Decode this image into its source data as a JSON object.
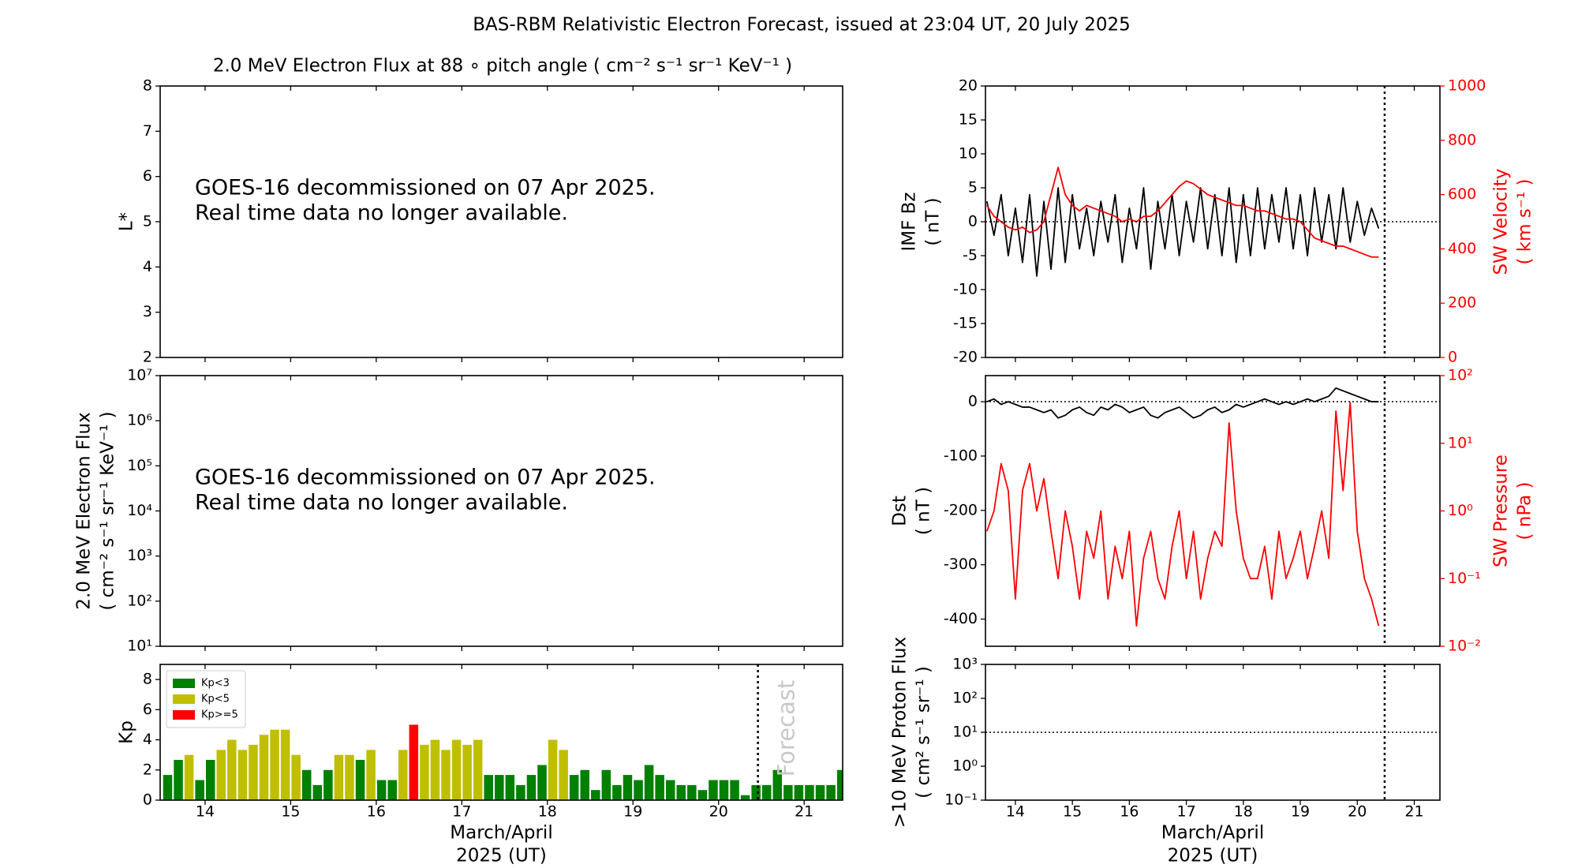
{
  "title": "BAS-RBM Relativistic Electron Forecast, issued at 23:04 UT, 20 July 2025",
  "chart_data": [
    {
      "type": "text",
      "title": "2.0 MeV Electron Flux at 88 ∘ pitch angle ( cm⁻² s⁻¹ sr⁻¹ KeV⁻¹ )",
      "ylabel": [
        "L*"
      ],
      "ylim": [
        2,
        8
      ],
      "yticks": [
        2,
        3,
        4,
        5,
        6,
        7,
        8
      ],
      "xlim": [
        13.475,
        21.45
      ],
      "xticks": [
        14,
        15,
        16,
        17,
        18,
        19,
        20,
        21
      ],
      "annotation": [
        "GOES-16 decommissioned on 07 Apr 2025.",
        "Real time data no longer available."
      ]
    },
    {
      "type": "text",
      "ylabel": [
        "2.0 MeV Electron Flux",
        "( cm⁻² s⁻¹ sr⁻¹ KeV⁻¹ )"
      ],
      "yscale": "log",
      "ylim": [
        10,
        10000000
      ],
      "yticks": [
        {
          "value": 10,
          "label": "10¹"
        },
        {
          "value": 100,
          "label": "10²"
        },
        {
          "value": 1000,
          "label": "10³"
        },
        {
          "value": 10000,
          "label": "10⁴"
        },
        {
          "value": 100000,
          "label": "10⁵"
        },
        {
          "value": 1000000,
          "label": "10⁶"
        },
        {
          "value": 10000000,
          "label": "10⁷"
        }
      ],
      "xlim": [
        13.475,
        21.45
      ],
      "xticks": [
        14,
        15,
        16,
        17,
        18,
        19,
        20,
        21
      ],
      "annotation": [
        "GOES-16 decommissioned on 07 Apr 2025.",
        "Real time data no longer available."
      ]
    },
    {
      "type": "bar",
      "ylabel": [
        "Kp"
      ],
      "ylim": [
        0,
        9
      ],
      "yticks": [
        0,
        2,
        4,
        6,
        8
      ],
      "xlim": [
        13.475,
        21.45
      ],
      "xticks": [
        14,
        15,
        16,
        17,
        18,
        19,
        20,
        21
      ],
      "xlabel": [
        "March/April",
        "2025 (UT)"
      ],
      "legend": "upper left",
      "vline": 20.46,
      "vline_label": "Forecast",
      "x": [
        13.5625,
        13.6875,
        13.8125,
        13.9375,
        14.0625,
        14.1875,
        14.3125,
        14.4375,
        14.5625,
        14.6875,
        14.8125,
        14.9375,
        15.0625,
        15.1875,
        15.3125,
        15.4375,
        15.5625,
        15.6875,
        15.8125,
        15.9375,
        16.0625,
        16.1875,
        16.3125,
        16.4375,
        16.5625,
        16.6875,
        16.8125,
        16.9375,
        17.0625,
        17.1875,
        17.3125,
        17.4375,
        17.5625,
        17.6875,
        17.8125,
        17.9375,
        18.0625,
        18.1875,
        18.3125,
        18.4375,
        18.5625,
        18.6875,
        18.8125,
        18.9375,
        19.0625,
        19.1875,
        19.3125,
        19.4375,
        19.5625,
        19.6875,
        19.8125,
        19.9375,
        20.0625,
        20.1875,
        20.3125,
        20.4375,
        20.5625,
        20.6875,
        20.8125,
        20.9375,
        21.0625,
        21.1875,
        21.3125,
        21.4375
      ],
      "series": [
        {
          "name": "Kp<3",
          "color": "#008000",
          "values": [
            1.67,
            2.67,
            null,
            1.33,
            2.67,
            null,
            null,
            null,
            null,
            null,
            null,
            null,
            null,
            2,
            1,
            2,
            null,
            null,
            2.67,
            null,
            1.33,
            1.33,
            null,
            null,
            null,
            null,
            null,
            null,
            null,
            null,
            1.67,
            1.67,
            1.67,
            1,
            1.67,
            2.33,
            null,
            null,
            1.67,
            2,
            0.67,
            2,
            1,
            1.67,
            1.33,
            2.33,
            1.67,
            1.33,
            1,
            1,
            0.67,
            1.33,
            1.33,
            1.33,
            0.33,
            1,
            1,
            2,
            1,
            1,
            1,
            1,
            1,
            2
          ]
        },
        {
          "name": "Kp<5",
          "color": "#bfbf00",
          "values": [
            null,
            null,
            3,
            null,
            null,
            3.33,
            4,
            3.33,
            3.67,
            4.33,
            4.67,
            4.67,
            3,
            null,
            null,
            null,
            3,
            3,
            null,
            3.33,
            null,
            null,
            3.33,
            null,
            3.67,
            4,
            3.33,
            4,
            3.67,
            4,
            null,
            null,
            null,
            null,
            null,
            null,
            4,
            3.33,
            null,
            null,
            null,
            null,
            null,
            null,
            null,
            null,
            null,
            null,
            null,
            null,
            null,
            null,
            null,
            null,
            null,
            null,
            null,
            null,
            null,
            null,
            null,
            null,
            null,
            null
          ]
        },
        {
          "name": "Kp>=5",
          "color": "#ff0000",
          "values": [
            null,
            null,
            null,
            null,
            null,
            null,
            null,
            null,
            null,
            null,
            null,
            null,
            null,
            null,
            null,
            null,
            null,
            null,
            null,
            null,
            null,
            null,
            null,
            5,
            null,
            null,
            null,
            null,
            null,
            null,
            null,
            null,
            null,
            null,
            null,
            null,
            null,
            null,
            null,
            null,
            null,
            null,
            null,
            null,
            null,
            null,
            null,
            null,
            null,
            null,
            null,
            null,
            null,
            null,
            null,
            null,
            null,
            null,
            null,
            null,
            null,
            null,
            null,
            null
          ]
        }
      ]
    },
    {
      "type": "line",
      "ylabel": [
        "IMF Bz",
        "( nT )"
      ],
      "ylim": [
        -20,
        20
      ],
      "yticks": [
        -20,
        -15,
        -10,
        -5,
        0,
        5,
        10,
        15,
        20
      ],
      "y2label": [
        "SW Velocity",
        "( km s⁻¹ )"
      ],
      "y2lim": [
        0,
        1000
      ],
      "y2ticks": [
        0,
        200,
        400,
        600,
        800,
        1000
      ],
      "xlim": [
        13.475,
        21.45
      ],
      "xticks": [
        14,
        15,
        16,
        17,
        18,
        19,
        20,
        21
      ],
      "vline": 20.48,
      "hline": 0,
      "x": [
        13.5,
        13.625,
        13.75,
        13.875,
        14,
        14.125,
        14.25,
        14.375,
        14.5,
        14.625,
        14.75,
        14.875,
        15,
        15.125,
        15.25,
        15.375,
        15.5,
        15.625,
        15.75,
        15.875,
        16,
        16.125,
        16.25,
        16.375,
        16.5,
        16.625,
        16.75,
        16.875,
        17,
        17.125,
        17.25,
        17.375,
        17.5,
        17.625,
        17.75,
        17.875,
        18,
        18.125,
        18.25,
        18.375,
        18.5,
        18.625,
        18.75,
        18.875,
        19,
        19.125,
        19.25,
        19.375,
        19.5,
        19.625,
        19.75,
        19.875,
        20,
        20.125,
        20.25,
        20.375
      ],
      "series": [
        {
          "color": "#000000",
          "values": [
            3,
            -2,
            4,
            -5,
            2,
            -6,
            4,
            -8,
            3,
            -7,
            5,
            -6,
            4,
            -4,
            2,
            -5,
            3,
            -3,
            4,
            -6,
            2,
            -4,
            5,
            -7,
            3,
            -4,
            4,
            -5,
            3,
            -3,
            5,
            -4,
            4,
            -5,
            5,
            -6,
            4,
            -5,
            5,
            -4,
            4,
            -3,
            5,
            -4,
            4,
            -5,
            5,
            -3,
            4,
            -4,
            5,
            -3,
            3,
            -2,
            2,
            -1
          ]
        },
        {
          "color": "#ff0000",
          "axis": "y2",
          "values": [
            560,
            520,
            500,
            480,
            470,
            480,
            460,
            470,
            500,
            600,
            700,
            600,
            560,
            540,
            560,
            550,
            540,
            530,
            520,
            500,
            510,
            500,
            520,
            520,
            540,
            570,
            600,
            630,
            650,
            640,
            620,
            600,
            590,
            580,
            570,
            560,
            560,
            550,
            540,
            540,
            530,
            520,
            510,
            510,
            500,
            470,
            440,
            430,
            420,
            410,
            410,
            400,
            390,
            380,
            370,
            370
          ]
        }
      ]
    },
    {
      "type": "line",
      "ylabel": [
        "Dst",
        "( nT )"
      ],
      "ylim": [
        -450,
        48
      ],
      "yticks": [
        -400,
        -300,
        -200,
        -100,
        0
      ],
      "y2label": [
        "SW Pressure",
        "( nPa )"
      ],
      "y2scale": "log",
      "y2lim": [
        0.01,
        100
      ],
      "y2ticks": [
        {
          "value": 0.01,
          "label": "10⁻²"
        },
        {
          "value": 0.1,
          "label": "10⁻¹"
        },
        {
          "value": 1,
          "label": "10⁰"
        },
        {
          "value": 10,
          "label": "10¹"
        },
        {
          "value": 100,
          "label": "10²"
        }
      ],
      "xlim": [
        13.475,
        21.45
      ],
      "xticks": [
        14,
        15,
        16,
        17,
        18,
        19,
        20,
        21
      ],
      "vline": 20.48,
      "hline": 0,
      "x": [
        13.5,
        13.625,
        13.75,
        13.875,
        14,
        14.125,
        14.25,
        14.375,
        14.5,
        14.625,
        14.75,
        14.875,
        15,
        15.125,
        15.25,
        15.375,
        15.5,
        15.625,
        15.75,
        15.875,
        16,
        16.125,
        16.25,
        16.375,
        16.5,
        16.625,
        16.75,
        16.875,
        17,
        17.125,
        17.25,
        17.375,
        17.5,
        17.625,
        17.75,
        17.875,
        18,
        18.125,
        18.25,
        18.375,
        18.5,
        18.625,
        18.75,
        18.875,
        19,
        19.125,
        19.25,
        19.375,
        19.5,
        19.625,
        19.75,
        19.875,
        20,
        20.125,
        20.25,
        20.375
      ],
      "series": [
        {
          "color": "#000000",
          "values": [
            0,
            5,
            -5,
            0,
            -5,
            -10,
            -10,
            -15,
            -20,
            -15,
            -30,
            -25,
            -15,
            -10,
            -20,
            -25,
            -10,
            -15,
            -5,
            -10,
            -20,
            -15,
            -10,
            -25,
            -30,
            -20,
            -15,
            -10,
            -20,
            -30,
            -25,
            -15,
            -10,
            -20,
            -15,
            -5,
            -10,
            -5,
            0,
            5,
            0,
            -5,
            0,
            -5,
            0,
            5,
            0,
            5,
            10,
            25,
            20,
            15,
            10,
            5,
            0,
            0
          ]
        },
        {
          "color": "#ff0000",
          "axis": "y2",
          "values": [
            0.5,
            1,
            5,
            2,
            0.05,
            2,
            5,
            1,
            3,
            0.5,
            0.1,
            1,
            0.3,
            0.05,
            0.5,
            0.2,
            1,
            0.05,
            0.3,
            0.1,
            0.5,
            0.02,
            0.2,
            0.5,
            0.1,
            0.05,
            0.3,
            1,
            0.1,
            0.5,
            0.05,
            0.2,
            0.5,
            0.3,
            20,
            1,
            0.2,
            0.1,
            0.1,
            0.3,
            0.05,
            0.5,
            0.1,
            0.2,
            0.5,
            0.1,
            0.3,
            1,
            0.2,
            30,
            2,
            40,
            0.5,
            0.1,
            0.05,
            0.02
          ]
        }
      ]
    },
    {
      "type": "text",
      "ylabel": [
        ">10 MeV Proton Flux",
        "( cm² s⁻¹ sr⁻¹ )"
      ],
      "yscale": "log",
      "ylim": [
        0.1,
        1000
      ],
      "yticks": [
        {
          "value": 0.1,
          "label": "10⁻¹"
        },
        {
          "value": 1,
          "label": "10⁰"
        },
        {
          "value": 10,
          "label": "10¹"
        },
        {
          "value": 100,
          "label": "10²"
        },
        {
          "value": 1000,
          "label": "10³"
        }
      ],
      "xlim": [
        13.475,
        21.45
      ],
      "xticks": [
        14,
        15,
        16,
        17,
        18,
        19,
        20,
        21
      ],
      "xlabel": [
        "March/April",
        "2025 (UT)"
      ],
      "vline": 20.48,
      "hline": 10
    }
  ]
}
